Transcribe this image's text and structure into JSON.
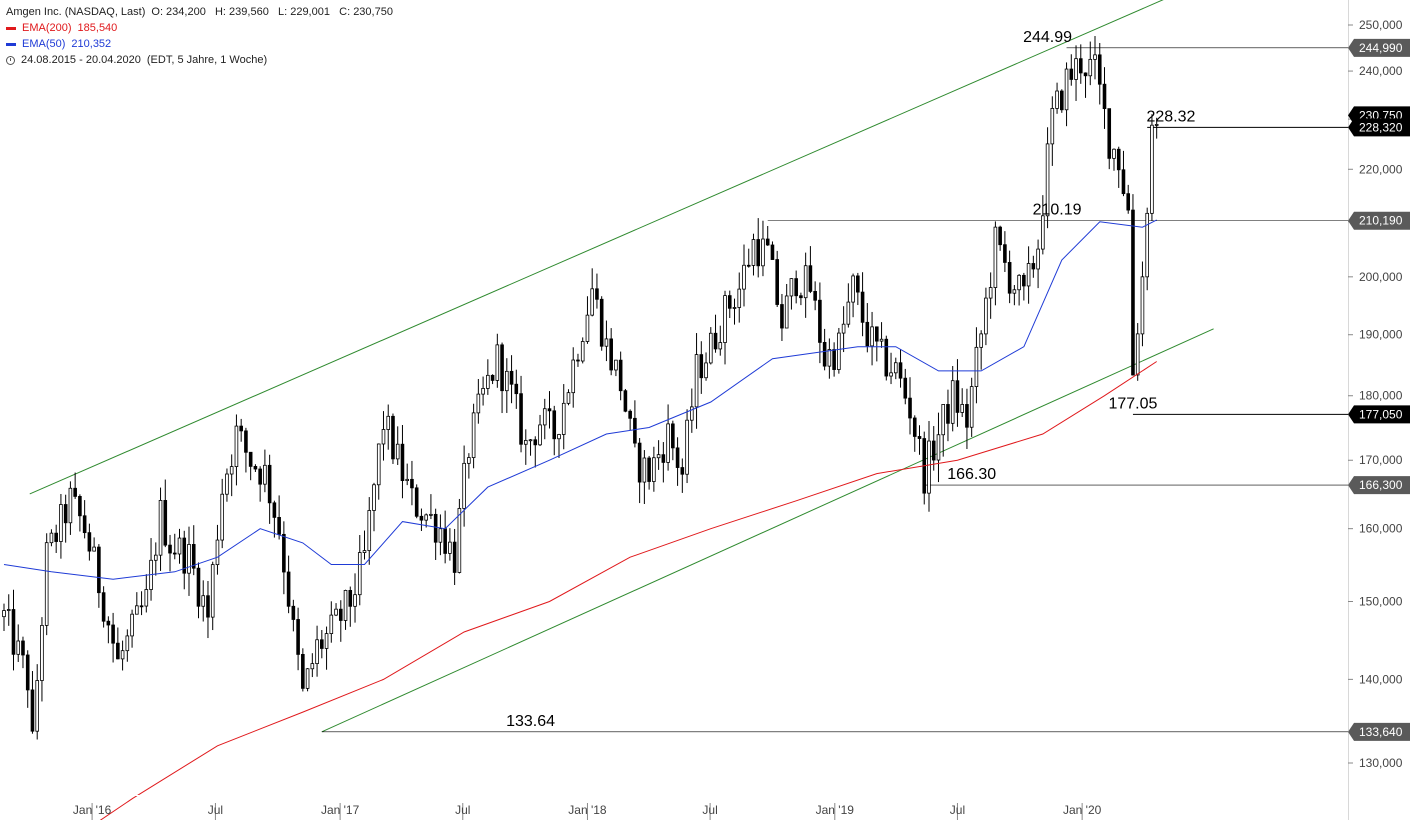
{
  "legend": {
    "instrument": "Amgen Inc. (NASDAQ, Last)",
    "ohlc": "O: 234,200   H: 239,560   L: 229,001   C: 230,750",
    "ema200_label": "EMA(200)",
    "ema200_value": "185,540",
    "ema50_label": "EMA(50)",
    "ema50_value": "210,352",
    "range": "24.08.2015 - 20.04.2020",
    "range_note": "(EDT, 5 Jahre, 1 Woche)"
  },
  "colors": {
    "ema200": "#e0191c",
    "ema50": "#1f3bd6",
    "channel": "#2f8a2f",
    "candle": "#000000",
    "level_line": "#000000",
    "axis_text": "#444444"
  },
  "chart_data": {
    "type": "candlestick",
    "title": "Amgen Inc. (NASDAQ, Last)",
    "y_scale": "log",
    "ylim": [
      124,
      262
    ],
    "x_range": [
      "2015-08-24",
      "2020-04-20"
    ],
    "y_ticks": [
      "130,000",
      "140,000",
      "150,000",
      "160,000",
      "170,000",
      "180,000",
      "190,000",
      "200,000",
      "210,000",
      "220,000",
      "230,000",
      "240,000",
      "250,000"
    ],
    "x_ticks": [
      {
        "date": "2016-01-01",
        "label": "Jan '16"
      },
      {
        "date": "2016-07-01",
        "label": "Jul"
      },
      {
        "date": "2017-01-01",
        "label": "Jan '17"
      },
      {
        "date": "2017-07-01",
        "label": "Jul"
      },
      {
        "date": "2018-01-01",
        "label": "Jan '18"
      },
      {
        "date": "2018-07-01",
        "label": "Jul"
      },
      {
        "date": "2019-01-01",
        "label": "Jan '19"
      },
      {
        "date": "2019-07-01",
        "label": "Jul"
      },
      {
        "date": "2020-01-01",
        "label": "Jan '20"
      }
    ],
    "price_anchors": [
      [
        "2015-08-24",
        148
      ],
      [
        "2015-09-28",
        140
      ],
      [
        "2015-10-05",
        132
      ],
      [
        "2015-10-26",
        156
      ],
      [
        "2015-11-30",
        164
      ],
      [
        "2015-12-21",
        160
      ],
      [
        "2016-01-18",
        150
      ],
      [
        "2016-02-08",
        142
      ],
      [
        "2016-02-29",
        146
      ],
      [
        "2016-03-21",
        150
      ],
      [
        "2016-04-11",
        162
      ],
      [
        "2016-04-25",
        158
      ],
      [
        "2016-05-23",
        156
      ],
      [
        "2016-06-20",
        148
      ],
      [
        "2016-07-11",
        166
      ],
      [
        "2016-08-01",
        174
      ],
      [
        "2016-08-22",
        170
      ],
      [
        "2016-09-12",
        168
      ],
      [
        "2016-10-03",
        160
      ],
      [
        "2016-10-24",
        146
      ],
      [
        "2016-11-07",
        138
      ],
      [
        "2016-11-28",
        144
      ],
      [
        "2016-12-19",
        146
      ],
      [
        "2017-01-16",
        150
      ],
      [
        "2017-02-06",
        156
      ],
      [
        "2017-03-06",
        176
      ],
      [
        "2017-03-27",
        170
      ],
      [
        "2017-04-17",
        164
      ],
      [
        "2017-05-08",
        162
      ],
      [
        "2017-05-29",
        160
      ],
      [
        "2017-06-19",
        156
      ],
      [
        "2017-07-10",
        172
      ],
      [
        "2017-07-31",
        180
      ],
      [
        "2017-08-21",
        186
      ],
      [
        "2017-09-11",
        180
      ],
      [
        "2017-10-02",
        172
      ],
      [
        "2017-10-23",
        176
      ],
      [
        "2017-11-13",
        174
      ],
      [
        "2017-12-04",
        182
      ],
      [
        "2018-01-08",
        198
      ],
      [
        "2018-01-29",
        188
      ],
      [
        "2018-02-19",
        182
      ],
      [
        "2018-03-12",
        170
      ],
      [
        "2018-04-02",
        168
      ],
      [
        "2018-04-30",
        174
      ],
      [
        "2018-05-21",
        168
      ],
      [
        "2018-06-11",
        184
      ],
      [
        "2018-07-02",
        188
      ],
      [
        "2018-07-23",
        194
      ],
      [
        "2018-08-13",
        198
      ],
      [
        "2018-09-03",
        206
      ],
      [
        "2018-09-24",
        204
      ],
      [
        "2018-10-15",
        192
      ],
      [
        "2018-11-05",
        200
      ],
      [
        "2018-11-26",
        198
      ],
      [
        "2018-12-17",
        186
      ],
      [
        "2019-01-07",
        188
      ],
      [
        "2019-01-28",
        198
      ],
      [
        "2019-02-18",
        190
      ],
      [
        "2019-03-11",
        186
      ],
      [
        "2019-04-01",
        184
      ],
      [
        "2019-04-22",
        178
      ],
      [
        "2019-05-13",
        168
      ],
      [
        "2019-06-03",
        174
      ],
      [
        "2019-06-24",
        180
      ],
      [
        "2019-07-15",
        176
      ],
      [
        "2019-08-05",
        190
      ],
      [
        "2019-08-26",
        206
      ],
      [
        "2019-09-16",
        200
      ],
      [
        "2019-10-07",
        196
      ],
      [
        "2019-10-28",
        206
      ],
      [
        "2019-11-18",
        230
      ],
      [
        "2019-12-09",
        238
      ],
      [
        "2019-12-30",
        242
      ],
      [
        "2020-01-20",
        240
      ],
      [
        "2020-02-10",
        226
      ],
      [
        "2020-02-24",
        222
      ],
      [
        "2020-03-09",
        212
      ],
      [
        "2020-03-16",
        184
      ],
      [
        "2020-03-30",
        200
      ],
      [
        "2020-04-13",
        228
      ],
      [
        "2020-04-20",
        230.75
      ]
    ],
    "series": [
      {
        "name": "EMA(200)",
        "color": "#e0191c",
        "points": [
          [
            "2015-11-02",
            120
          ],
          [
            "2016-03-01",
            126
          ],
          [
            "2016-07-04",
            132
          ],
          [
            "2016-11-07",
            136
          ],
          [
            "2017-03-06",
            140
          ],
          [
            "2017-07-03",
            146
          ],
          [
            "2017-11-06",
            150
          ],
          [
            "2018-03-05",
            156
          ],
          [
            "2018-07-02",
            160
          ],
          [
            "2018-11-05",
            164
          ],
          [
            "2019-03-04",
            168
          ],
          [
            "2019-07-01",
            170
          ],
          [
            "2019-11-04",
            174
          ],
          [
            "2020-02-03",
            180
          ],
          [
            "2020-04-20",
            185.54
          ]
        ]
      },
      {
        "name": "EMA(50)",
        "color": "#1f3bd6",
        "points": [
          [
            "2015-08-24",
            155
          ],
          [
            "2015-11-02",
            154
          ],
          [
            "2016-02-01",
            153
          ],
          [
            "2016-05-02",
            154
          ],
          [
            "2016-07-04",
            156
          ],
          [
            "2016-09-05",
            160
          ],
          [
            "2016-11-07",
            158
          ],
          [
            "2016-12-19",
            155
          ],
          [
            "2017-02-06",
            155
          ],
          [
            "2017-04-03",
            161
          ],
          [
            "2017-06-05",
            160
          ],
          [
            "2017-08-07",
            166
          ],
          [
            "2017-11-06",
            170
          ],
          [
            "2018-01-29",
            174
          ],
          [
            "2018-04-02",
            175
          ],
          [
            "2018-07-02",
            179
          ],
          [
            "2018-10-01",
            186
          ],
          [
            "2018-12-03",
            187
          ],
          [
            "2019-02-04",
            188
          ],
          [
            "2019-04-01",
            188
          ],
          [
            "2019-06-03",
            184
          ],
          [
            "2019-08-05",
            184
          ],
          [
            "2019-10-07",
            188
          ],
          [
            "2019-12-02",
            203
          ],
          [
            "2020-01-27",
            210
          ],
          [
            "2020-03-30",
            209
          ],
          [
            "2020-04-20",
            210.352
          ]
        ]
      }
    ],
    "channel": [
      {
        "from": [
          "2015-10-01",
          165
        ],
        "to": [
          "2020-08-01",
          262
        ]
      },
      {
        "from": [
          "2016-12-05",
          133.64
        ],
        "to": [
          "2020-07-13",
          191
        ]
      }
    ],
    "levels": [
      {
        "value": 244.99,
        "label": "244.99",
        "axis_label": "244,990",
        "start": "2019-12-09",
        "label_anchor": "2019-11-11"
      },
      {
        "value": 228.32,
        "label": "228.32",
        "axis_label": "228,320",
        "start": "2020-04-06",
        "label_anchor": "2020-05-11"
      },
      {
        "value": 210.19,
        "label": "210.19",
        "axis_label": "210,190",
        "start": "2018-09-24",
        "label_anchor": "2019-11-25"
      },
      {
        "value": 177.05,
        "label": "177.05",
        "axis_label": "177,050",
        "start": "2020-03-16",
        "label_anchor": "2020-03-16"
      },
      {
        "value": 166.3,
        "label": "166.30",
        "axis_label": "166,300",
        "start": "2019-05-13",
        "label_anchor": "2019-07-22"
      },
      {
        "value": 133.64,
        "label": "133.64",
        "axis_label": "133,640",
        "start": "2016-12-05",
        "label_anchor": "2017-10-09"
      }
    ],
    "last_price": {
      "value": 230.75,
      "axis_label": "230,750"
    }
  }
}
